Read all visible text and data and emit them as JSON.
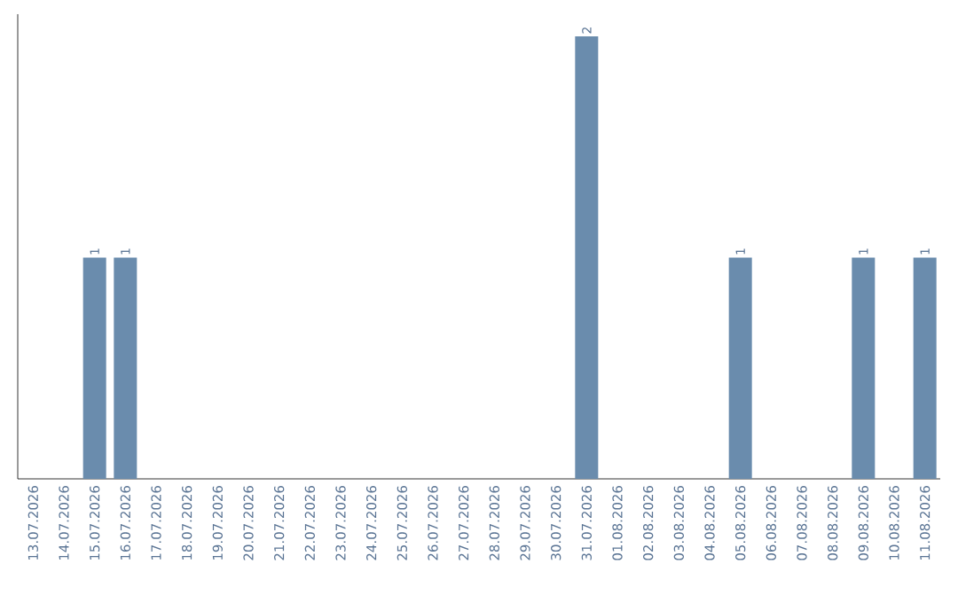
{
  "chart_data": {
    "type": "bar",
    "categories": [
      "13.07.2026",
      "14.07.2026",
      "15.07.2026",
      "16.07.2026",
      "17.07.2026",
      "18.07.2026",
      "19.07.2026",
      "20.07.2026",
      "21.07.2026",
      "22.07.2026",
      "23.07.2026",
      "24.07.2026",
      "25.07.2026",
      "26.07.2026",
      "27.07.2026",
      "28.07.2026",
      "29.07.2026",
      "30.07.2026",
      "31.07.2026",
      "01.08.2026",
      "02.08.2026",
      "03.08.2026",
      "04.08.2026",
      "05.08.2026",
      "06.08.2026",
      "07.08.2026",
      "08.08.2026",
      "09.08.2026",
      "10.08.2026",
      "11.08.2026"
    ],
    "values": [
      0,
      0,
      1,
      1,
      0,
      0,
      0,
      0,
      0,
      0,
      0,
      0,
      0,
      0,
      0,
      0,
      0,
      0,
      2,
      0,
      0,
      0,
      0,
      1,
      0,
      0,
      0,
      1,
      0,
      1
    ],
    "value_labels": [
      null,
      null,
      "1",
      "1",
      null,
      null,
      null,
      null,
      null,
      null,
      null,
      null,
      null,
      null,
      null,
      null,
      null,
      null,
      "2",
      null,
      null,
      null,
      null,
      "1",
      null,
      null,
      null,
      "1",
      null,
      "1"
    ],
    "color": "#6a8cad"
  }
}
